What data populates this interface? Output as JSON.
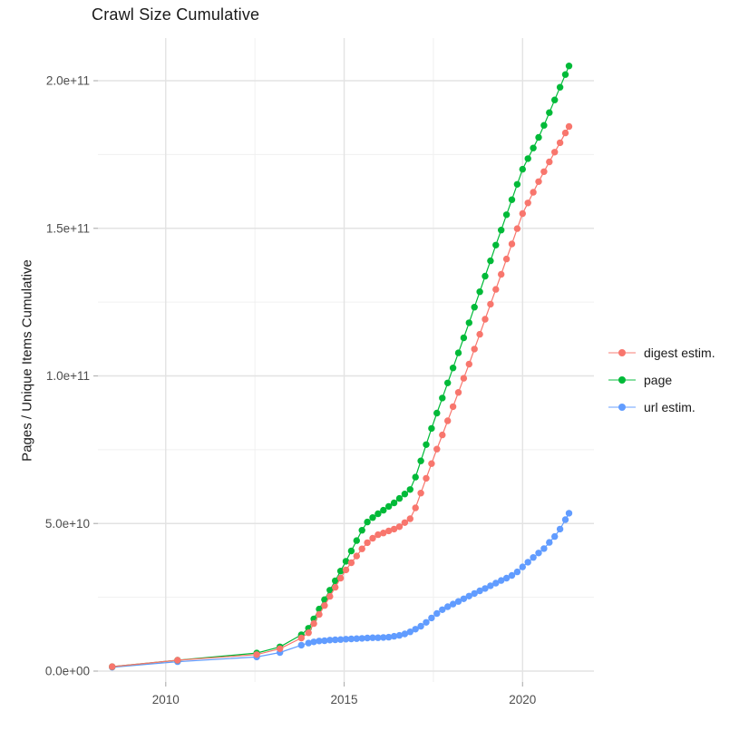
{
  "title": "Crawl Size Cumulative",
  "legend": {
    "items": [
      {
        "label": "digest estim.",
        "color": "#F8766D"
      },
      {
        "label": "page",
        "color": "#00BA38"
      },
      {
        "label": "url estim.",
        "color": "#619CFF"
      }
    ]
  },
  "chart_data": {
    "type": "line",
    "title": "Crawl Size Cumulative",
    "xlabel": "",
    "ylabel": "Pages / Unique Items Cumulative",
    "y_unit": "items (value stored in billions, 1e9)",
    "x_unit": "year (decimal)",
    "xlim": [
      2008.1,
      2022.0
    ],
    "ylim_billions": [
      -4,
      214
    ],
    "grid": "major and minor, light gray on white",
    "legend_position": "right",
    "x_tick_values": [
      2010,
      2015,
      2020
    ],
    "x_tick_labels": [
      "2010",
      "2015",
      "2020"
    ],
    "y_tick_values_billions": [
      0,
      50,
      100,
      150,
      200
    ],
    "y_tick_labels": [
      "0.0e+00",
      "5.0e+10",
      "1.0e+11",
      "1.5e+11",
      "2.0e+11"
    ],
    "x_minor_ticks": [
      2012.5,
      2017.5
    ],
    "y_minor_ticks_billions": [
      25,
      75,
      125,
      175
    ],
    "series": [
      {
        "name": "url estim.",
        "color": "#619CFF",
        "points": [
          [
            2008.5,
            1.3
          ],
          [
            2010.33,
            3.2
          ],
          [
            2012.55,
            4.8
          ],
          [
            2013.2,
            6.3
          ],
          [
            2013.8,
            8.8
          ],
          [
            2014.0,
            9.5
          ],
          [
            2014.15,
            9.9
          ],
          [
            2014.3,
            10.2
          ],
          [
            2014.45,
            10.3
          ],
          [
            2014.6,
            10.5
          ],
          [
            2014.75,
            10.6
          ],
          [
            2014.9,
            10.7
          ],
          [
            2015.05,
            10.8
          ],
          [
            2015.2,
            10.9
          ],
          [
            2015.35,
            11.0
          ],
          [
            2015.5,
            11.1
          ],
          [
            2015.65,
            11.2
          ],
          [
            2015.8,
            11.3
          ],
          [
            2015.95,
            11.3
          ],
          [
            2016.1,
            11.4
          ],
          [
            2016.25,
            11.5
          ],
          [
            2016.4,
            11.8
          ],
          [
            2016.55,
            12.1
          ],
          [
            2016.7,
            12.6
          ],
          [
            2016.85,
            13.3
          ],
          [
            2017.0,
            14.2
          ],
          [
            2017.15,
            15.2
          ],
          [
            2017.3,
            16.5
          ],
          [
            2017.45,
            18.0
          ],
          [
            2017.6,
            19.5
          ],
          [
            2017.75,
            20.8
          ],
          [
            2017.9,
            21.8
          ],
          [
            2018.05,
            22.7
          ],
          [
            2018.2,
            23.6
          ],
          [
            2018.35,
            24.5
          ],
          [
            2018.5,
            25.4
          ],
          [
            2018.65,
            26.3
          ],
          [
            2018.8,
            27.2
          ],
          [
            2018.95,
            28.0
          ],
          [
            2019.1,
            28.9
          ],
          [
            2019.25,
            29.8
          ],
          [
            2019.4,
            30.7
          ],
          [
            2019.55,
            31.5
          ],
          [
            2019.7,
            32.4
          ],
          [
            2019.85,
            33.6
          ],
          [
            2020.0,
            35.3
          ],
          [
            2020.15,
            36.9
          ],
          [
            2020.3,
            38.5
          ],
          [
            2020.45,
            40.0
          ],
          [
            2020.6,
            41.5
          ],
          [
            2020.75,
            43.6
          ],
          [
            2020.9,
            45.6
          ],
          [
            2021.05,
            48.1
          ],
          [
            2021.2,
            51.3
          ],
          [
            2021.3,
            53.5
          ]
        ]
      },
      {
        "name": "page",
        "color": "#00BA38",
        "points": [
          [
            2008.5,
            1.5
          ],
          [
            2010.33,
            3.7
          ],
          [
            2012.55,
            6.1
          ],
          [
            2013.2,
            8.2
          ],
          [
            2013.8,
            12.3
          ],
          [
            2014.0,
            14.5
          ],
          [
            2014.15,
            17.7
          ],
          [
            2014.3,
            21.0
          ],
          [
            2014.45,
            24.2
          ],
          [
            2014.6,
            27.4
          ],
          [
            2014.75,
            30.6
          ],
          [
            2014.9,
            33.9
          ],
          [
            2015.05,
            37.2
          ],
          [
            2015.2,
            40.7
          ],
          [
            2015.35,
            44.2
          ],
          [
            2015.5,
            47.7
          ],
          [
            2015.65,
            50.5
          ],
          [
            2015.8,
            52.0
          ],
          [
            2015.95,
            53.3
          ],
          [
            2016.1,
            54.5
          ],
          [
            2016.25,
            55.8
          ],
          [
            2016.4,
            57.0
          ],
          [
            2016.55,
            58.5
          ],
          [
            2016.7,
            60.0
          ],
          [
            2016.85,
            61.5
          ],
          [
            2017.0,
            65.7
          ],
          [
            2017.15,
            71.2
          ],
          [
            2017.3,
            76.7
          ],
          [
            2017.45,
            82.2
          ],
          [
            2017.6,
            87.4
          ],
          [
            2017.75,
            92.5
          ],
          [
            2017.9,
            97.6
          ],
          [
            2018.05,
            102.7
          ],
          [
            2018.2,
            107.8
          ],
          [
            2018.35,
            112.9
          ],
          [
            2018.5,
            118.0
          ],
          [
            2018.65,
            123.3
          ],
          [
            2018.8,
            128.5
          ],
          [
            2018.95,
            133.8
          ],
          [
            2019.1,
            139.0
          ],
          [
            2019.25,
            144.3
          ],
          [
            2019.4,
            149.4
          ],
          [
            2019.55,
            154.6
          ],
          [
            2019.7,
            159.7
          ],
          [
            2019.85,
            164.9
          ],
          [
            2020.0,
            170.0
          ],
          [
            2020.15,
            173.6
          ],
          [
            2020.3,
            177.2
          ],
          [
            2020.45,
            180.8
          ],
          [
            2020.6,
            184.9
          ],
          [
            2020.75,
            189.2
          ],
          [
            2020.9,
            193.5
          ],
          [
            2021.05,
            197.8
          ],
          [
            2021.2,
            202.1
          ],
          [
            2021.3,
            205.0
          ]
        ]
      },
      {
        "name": "digest estim.",
        "color": "#F8766D",
        "points": [
          [
            2008.5,
            1.5
          ],
          [
            2010.33,
            3.7
          ],
          [
            2012.55,
            5.6
          ],
          [
            2013.2,
            7.6
          ],
          [
            2013.8,
            11.2
          ],
          [
            2014.0,
            13.0
          ],
          [
            2014.15,
            16.1
          ],
          [
            2014.3,
            19.2
          ],
          [
            2014.45,
            22.2
          ],
          [
            2014.6,
            25.3
          ],
          [
            2014.75,
            28.4
          ],
          [
            2014.9,
            31.5
          ],
          [
            2015.05,
            34.3
          ],
          [
            2015.2,
            36.7
          ],
          [
            2015.35,
            39.0
          ],
          [
            2015.5,
            41.4
          ],
          [
            2015.65,
            43.5
          ],
          [
            2015.8,
            45.0
          ],
          [
            2015.95,
            46.2
          ],
          [
            2016.1,
            46.8
          ],
          [
            2016.25,
            47.5
          ],
          [
            2016.4,
            48.1
          ],
          [
            2016.55,
            48.9
          ],
          [
            2016.7,
            50.3
          ],
          [
            2016.85,
            51.6
          ],
          [
            2017.0,
            55.3
          ],
          [
            2017.15,
            60.3
          ],
          [
            2017.3,
            65.3
          ],
          [
            2017.45,
            70.3
          ],
          [
            2017.6,
            75.2
          ],
          [
            2017.75,
            80.0
          ],
          [
            2017.9,
            84.8
          ],
          [
            2018.05,
            89.6
          ],
          [
            2018.2,
            94.4
          ],
          [
            2018.35,
            99.2
          ],
          [
            2018.5,
            104.0
          ],
          [
            2018.65,
            109.1
          ],
          [
            2018.8,
            114.1
          ],
          [
            2018.95,
            119.2
          ],
          [
            2019.1,
            124.3
          ],
          [
            2019.25,
            129.3
          ],
          [
            2019.4,
            134.4
          ],
          [
            2019.55,
            139.6
          ],
          [
            2019.7,
            144.7
          ],
          [
            2019.85,
            149.9
          ],
          [
            2020.0,
            155.0
          ],
          [
            2020.15,
            158.6
          ],
          [
            2020.3,
            162.2
          ],
          [
            2020.45,
            165.8
          ],
          [
            2020.6,
            169.2
          ],
          [
            2020.75,
            172.5
          ],
          [
            2020.9,
            175.8
          ],
          [
            2021.05,
            179.0
          ],
          [
            2021.2,
            182.3
          ],
          [
            2021.3,
            184.5
          ]
        ]
      }
    ]
  }
}
